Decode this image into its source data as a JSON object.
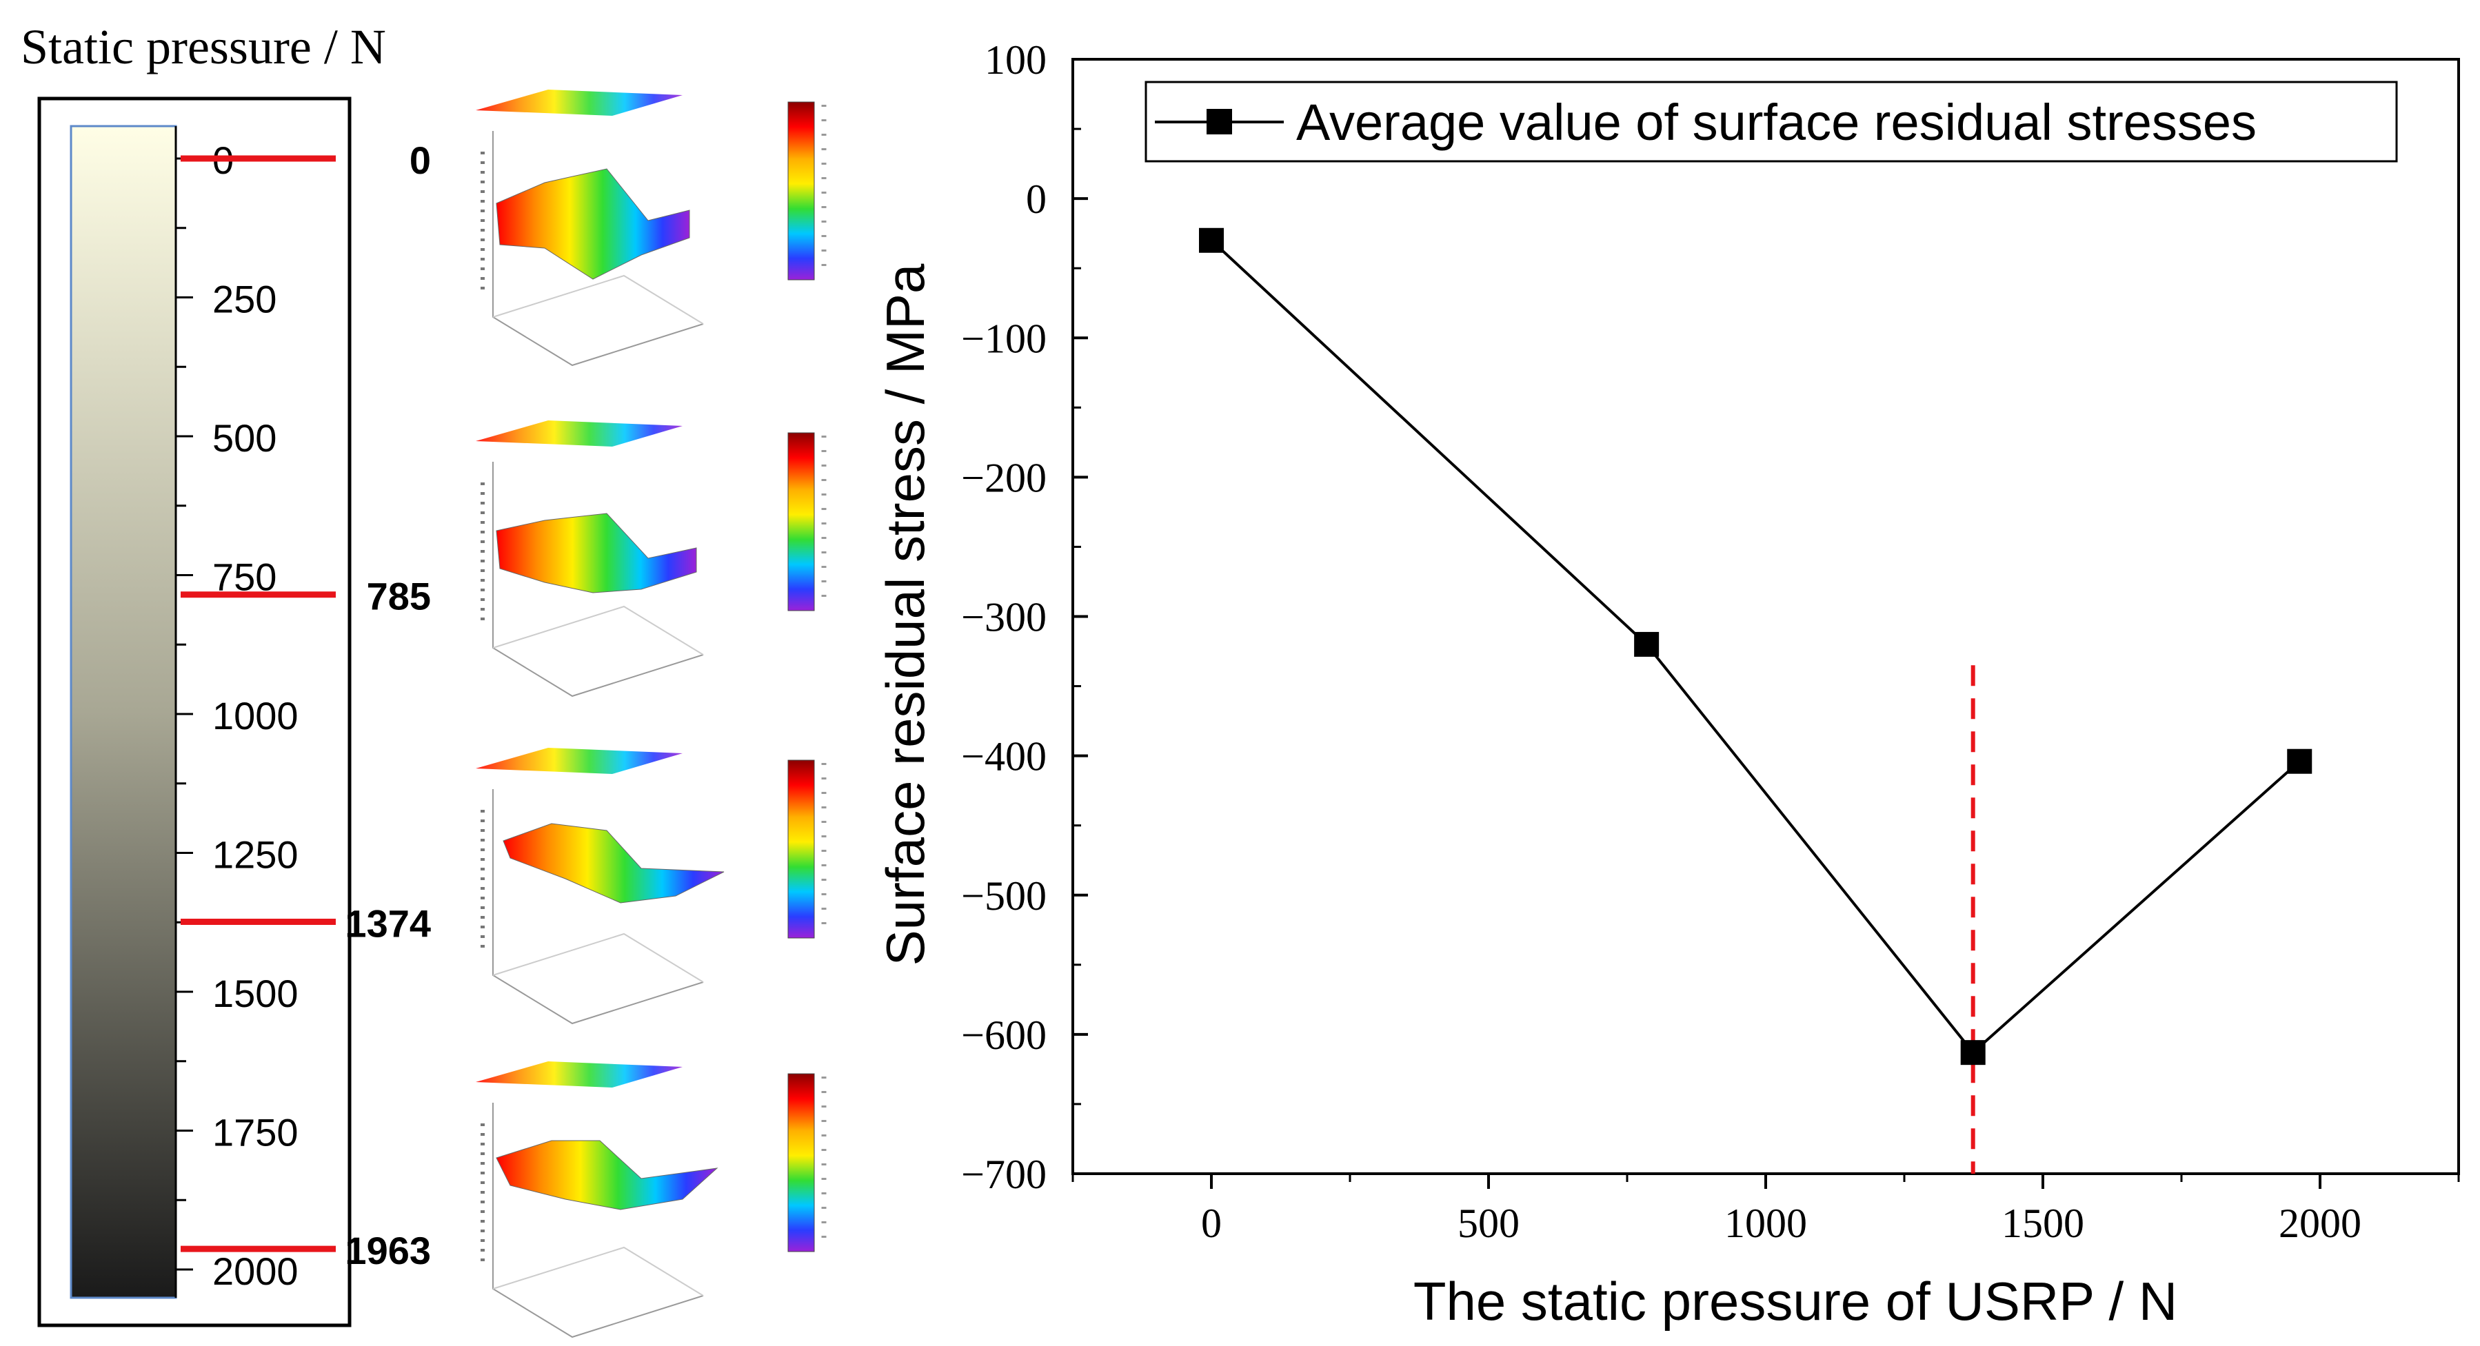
{
  "scale_panel": {
    "title": "Static pressure / N",
    "ticks": [
      "0",
      "250",
      "500",
      "750",
      "1000",
      "1250",
      "1500",
      "1750",
      "2000"
    ],
    "tick_values": [
      0,
      250,
      500,
      750,
      1000,
      1250,
      1500,
      1750,
      2000
    ],
    "range": [
      0,
      2000
    ],
    "gradient": {
      "top": "#fffee6",
      "bottom": "#1a1a1a"
    },
    "markers": [
      {
        "value": 0,
        "label": "0"
      },
      {
        "value": 785,
        "label": "785"
      },
      {
        "value": 1374,
        "label": "1374"
      },
      {
        "value": 1963,
        "label": "1963"
      }
    ],
    "marker_color": "#e8151b"
  },
  "surface_plots": [
    {
      "name": "surface-plot-0"
    },
    {
      "name": "surface-plot-785"
    },
    {
      "name": "surface-plot-1374"
    },
    {
      "name": "surface-plot-1963"
    }
  ],
  "chart_data": {
    "type": "line",
    "title": "",
    "xlabel": "The static pressure of USRP / N",
    "ylabel": "Surface residual stress / MPa",
    "xlim": [
      -250,
      2250
    ],
    "ylim": [
      -700,
      100
    ],
    "x_ticks": [
      0,
      500,
      1000,
      1500,
      2000
    ],
    "x_tick_labels": [
      "0",
      "500",
      "1000",
      "1500",
      "2000"
    ],
    "y_ticks": [
      100,
      0,
      -100,
      -200,
      -300,
      -400,
      -500,
      -600,
      -700
    ],
    "y_tick_labels": [
      "100",
      "0",
      "−100",
      "−200",
      "−300",
      "−400",
      "−500",
      "−600",
      "−700"
    ],
    "grid": false,
    "legend_position": "top",
    "series": [
      {
        "name": "Average value of surface residual stresses",
        "marker": "square",
        "color": "#000000",
        "x": [
          0,
          785,
          1374,
          1963
        ],
        "y": [
          -30,
          -320,
          -613,
          -404
        ]
      }
    ],
    "reference_line": {
      "x": 1374,
      "y_range": [
        -700,
        -335
      ],
      "color": "#e8151b",
      "style": "dashed"
    }
  }
}
